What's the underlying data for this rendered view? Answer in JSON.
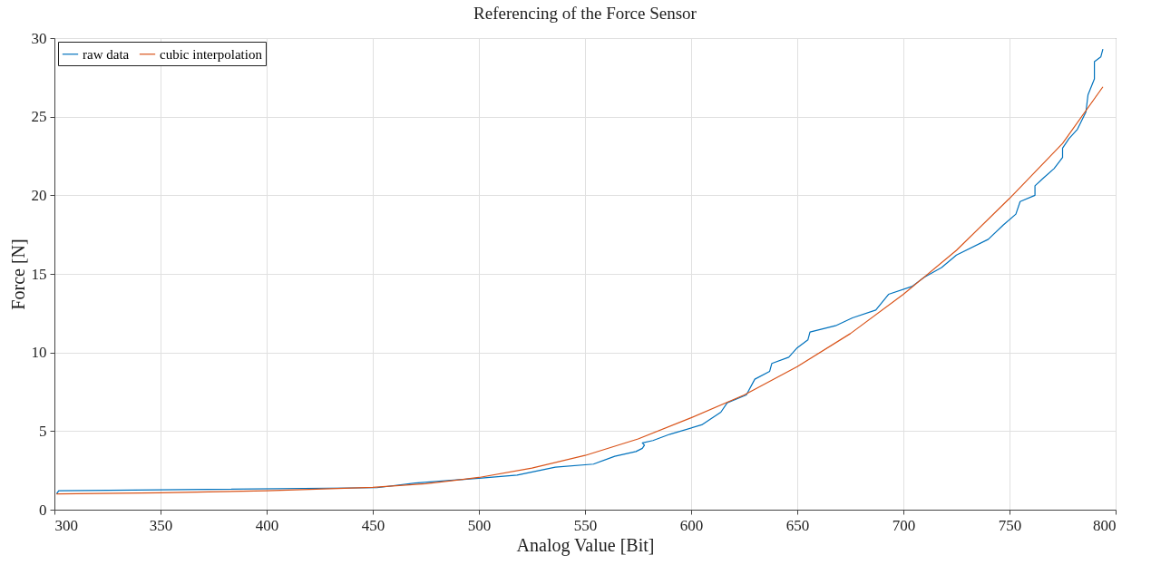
{
  "chart_data": {
    "type": "line",
    "title": "Referencing of the Force Sensor",
    "xlabel": "Analog Value [Bit]",
    "ylabel": "Force [N]",
    "xlim": [
      300,
      800
    ],
    "xticks": [
      300,
      350,
      400,
      450,
      500,
      550,
      600,
      650,
      700,
      750,
      800
    ],
    "ylim": [
      0,
      30
    ],
    "yticks": [
      0,
      5,
      10,
      15,
      20,
      25,
      30
    ],
    "grid": true,
    "legend": "top left",
    "line_style": "solid",
    "marker": "none",
    "series": [
      {
        "name": "raw data",
        "color": "#0072bd",
        "x": [
          301,
          302,
          452,
          470,
          500,
          518,
          536,
          554,
          564,
          574,
          577,
          578,
          577,
          582,
          590,
          605,
          614,
          617,
          626,
          630,
          637,
          638,
          646,
          650,
          655,
          656,
          668,
          676,
          687,
          693,
          704,
          710,
          718,
          725,
          740,
          747,
          753,
          755,
          762,
          762,
          766,
          771,
          775,
          775,
          778,
          782,
          786,
          787,
          790,
          790,
          793,
          794
        ],
        "values": [
          1.0,
          1.2,
          1.4,
          1.7,
          2.0,
          2.2,
          2.7,
          2.9,
          3.4,
          3.7,
          3.9,
          4.1,
          4.25,
          4.4,
          4.8,
          5.4,
          6.2,
          6.8,
          7.3,
          8.3,
          8.8,
          9.3,
          9.7,
          10.3,
          10.8,
          11.3,
          11.7,
          12.2,
          12.7,
          13.7,
          14.2,
          14.8,
          15.4,
          16.2,
          17.2,
          18.1,
          18.8,
          19.6,
          20.0,
          20.6,
          21.1,
          21.7,
          22.4,
          23.0,
          23.6,
          24.2,
          25.3,
          26.4,
          27.4,
          28.5,
          28.8,
          29.3
        ]
      },
      {
        "name": "cubic interpolation",
        "color": "#d95319",
        "x": [
          301,
          350,
          400,
          450,
          475,
          500,
          525,
          550,
          575,
          600,
          625,
          650,
          675,
          700,
          725,
          750,
          775,
          794
        ],
        "values": [
          1.0,
          1.08,
          1.2,
          1.42,
          1.65,
          2.05,
          2.65,
          3.45,
          4.5,
          5.85,
          7.3,
          9.1,
          11.2,
          13.7,
          16.5,
          19.8,
          23.3,
          26.9
        ]
      }
    ]
  }
}
